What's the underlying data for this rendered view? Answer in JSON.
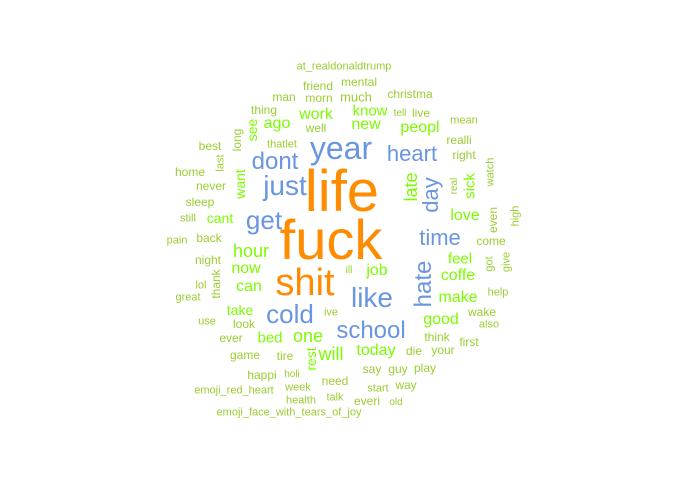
{
  "palette": {
    "orange": "#ff8c00",
    "blue": "#6a95e0",
    "green": "#7cfc00",
    "lightgreen": "#9acd32"
  },
  "words": [
    {
      "text": "life",
      "color": "orange"
    },
    {
      "text": "fuck",
      "color": "orange"
    },
    {
      "text": "shit",
      "color": "orange"
    },
    {
      "text": "year",
      "color": "blue"
    },
    {
      "text": "just",
      "color": "blue"
    },
    {
      "text": "dont",
      "color": "blue"
    },
    {
      "text": "get",
      "color": "blue"
    },
    {
      "text": "heart",
      "color": "blue"
    },
    {
      "text": "time",
      "color": "blue"
    },
    {
      "text": "like",
      "color": "blue"
    },
    {
      "text": "cold",
      "color": "blue"
    },
    {
      "text": "school",
      "color": "blue"
    },
    {
      "text": "hate",
      "color": "blue"
    },
    {
      "text": "day",
      "color": "blue"
    },
    {
      "text": "late",
      "color": "green"
    },
    {
      "text": "hour",
      "color": "green"
    },
    {
      "text": "now",
      "color": "green"
    },
    {
      "text": "can",
      "color": "green"
    },
    {
      "text": "job",
      "color": "green"
    },
    {
      "text": "coffe",
      "color": "green"
    },
    {
      "text": "make",
      "color": "green"
    },
    {
      "text": "good",
      "color": "green"
    },
    {
      "text": "one",
      "color": "green"
    },
    {
      "text": "will",
      "color": "green"
    },
    {
      "text": "today",
      "color": "green"
    },
    {
      "text": "love",
      "color": "green"
    },
    {
      "text": "feel",
      "color": "green"
    },
    {
      "text": "sick",
      "color": "green"
    },
    {
      "text": "work",
      "color": "green"
    },
    {
      "text": "know",
      "color": "green"
    },
    {
      "text": "new",
      "color": "green"
    },
    {
      "text": "peopl",
      "color": "green"
    },
    {
      "text": "ago",
      "color": "green"
    },
    {
      "text": "see",
      "color": "green"
    },
    {
      "text": "want",
      "color": "green"
    },
    {
      "text": "cant",
      "color": "green"
    },
    {
      "text": "take",
      "color": "green"
    },
    {
      "text": "bed",
      "color": "green"
    },
    {
      "text": "rest",
      "color": "green"
    },
    {
      "text": "even",
      "color": "lightgreen"
    },
    {
      "text": "at_realdonaldtrump",
      "color": "lightgreen"
    },
    {
      "text": "friend",
      "color": "lightgreen"
    },
    {
      "text": "mental",
      "color": "lightgreen"
    },
    {
      "text": "man",
      "color": "lightgreen"
    },
    {
      "text": "morn",
      "color": "lightgreen"
    },
    {
      "text": "much",
      "color": "lightgreen"
    },
    {
      "text": "christma",
      "color": "lightgreen"
    },
    {
      "text": "thing",
      "color": "lightgreen"
    },
    {
      "text": "tell",
      "color": "lightgreen"
    },
    {
      "text": "live",
      "color": "lightgreen"
    },
    {
      "text": "mean",
      "color": "lightgreen"
    },
    {
      "text": "well",
      "color": "lightgreen"
    },
    {
      "text": "realli",
      "color": "lightgreen"
    },
    {
      "text": "best",
      "color": "lightgreen"
    },
    {
      "text": "long",
      "color": "lightgreen"
    },
    {
      "text": "thatlet",
      "color": "lightgreen"
    },
    {
      "text": "right",
      "color": "lightgreen"
    },
    {
      "text": "last",
      "color": "lightgreen"
    },
    {
      "text": "home",
      "color": "lightgreen"
    },
    {
      "text": "real",
      "color": "lightgreen"
    },
    {
      "text": "watch",
      "color": "lightgreen"
    },
    {
      "text": "never",
      "color": "lightgreen"
    },
    {
      "text": "sleep",
      "color": "lightgreen"
    },
    {
      "text": "high",
      "color": "lightgreen"
    },
    {
      "text": "still",
      "color": "lightgreen"
    },
    {
      "text": "back",
      "color": "lightgreen"
    },
    {
      "text": "pain",
      "color": "lightgreen"
    },
    {
      "text": "come",
      "color": "lightgreen"
    },
    {
      "text": "night",
      "color": "lightgreen"
    },
    {
      "text": "got",
      "color": "lightgreen"
    },
    {
      "text": "give",
      "color": "lightgreen"
    },
    {
      "text": "ill",
      "color": "lightgreen"
    },
    {
      "text": "thank",
      "color": "lightgreen"
    },
    {
      "text": "lol",
      "color": "lightgreen"
    },
    {
      "text": "help",
      "color": "lightgreen"
    },
    {
      "text": "great",
      "color": "lightgreen"
    },
    {
      "text": "ive",
      "color": "lightgreen"
    },
    {
      "text": "wake",
      "color": "lightgreen"
    },
    {
      "text": "use",
      "color": "lightgreen"
    },
    {
      "text": "look",
      "color": "lightgreen"
    },
    {
      "text": "also",
      "color": "lightgreen"
    },
    {
      "text": "think",
      "color": "lightgreen"
    },
    {
      "text": "ever",
      "color": "lightgreen"
    },
    {
      "text": "die",
      "color": "lightgreen"
    },
    {
      "text": "your",
      "color": "lightgreen"
    },
    {
      "text": "first",
      "color": "lightgreen"
    },
    {
      "text": "game",
      "color": "lightgreen"
    },
    {
      "text": "tire",
      "color": "lightgreen"
    },
    {
      "text": "say",
      "color": "lightgreen"
    },
    {
      "text": "guy",
      "color": "lightgreen"
    },
    {
      "text": "play",
      "color": "lightgreen"
    },
    {
      "text": "happi",
      "color": "lightgreen"
    },
    {
      "text": "holi",
      "color": "lightgreen"
    },
    {
      "text": "need",
      "color": "lightgreen"
    },
    {
      "text": "start",
      "color": "lightgreen"
    },
    {
      "text": "way",
      "color": "lightgreen"
    },
    {
      "text": "emoji_red_heart",
      "color": "lightgreen"
    },
    {
      "text": "week",
      "color": "lightgreen"
    },
    {
      "text": "health",
      "color": "lightgreen"
    },
    {
      "text": "talk",
      "color": "lightgreen"
    },
    {
      "text": "everi",
      "color": "lightgreen"
    },
    {
      "text": "old",
      "color": "lightgreen"
    },
    {
      "text": "emoji_face_with_tears_of_joy",
      "color": "lightgreen"
    }
  ]
}
